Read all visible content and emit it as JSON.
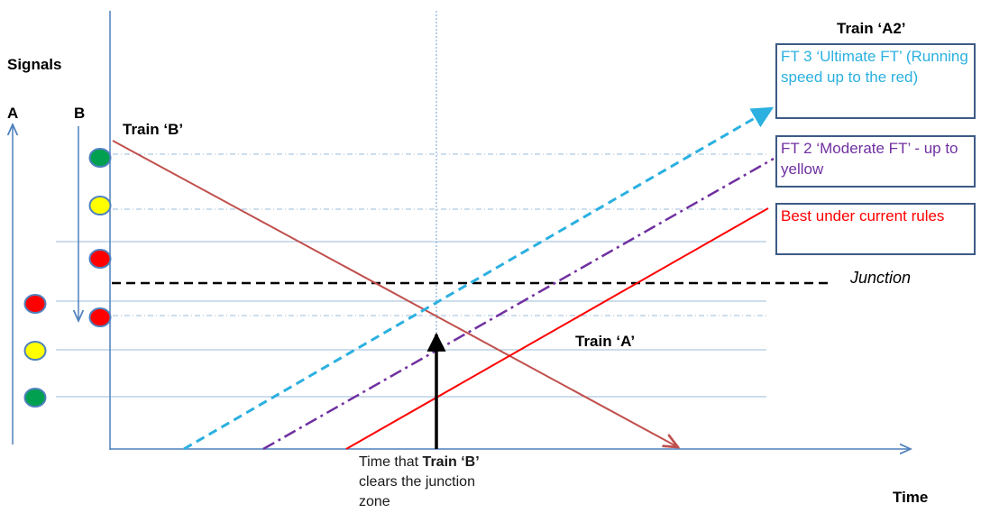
{
  "labels": {
    "signals": "Signals",
    "signal_a": "A",
    "signal_b": "B",
    "train_b": "Train ‘B’",
    "train_a": "Train ‘A’",
    "train_a2": "Train ‘A2’",
    "junction": "Junction",
    "time": "Time"
  },
  "boxes": {
    "ft3": "FT 3 ‘Ultimate FT’ (Running speed up to the red)",
    "ft2": "FT 2 ‘Moderate FT’ - up to yellow",
    "best": "Best under current rules"
  },
  "caption": {
    "line1_prefix": "Time that ",
    "line1_bold": "Train ‘B’",
    "line2": "clears the junction",
    "line3": "zone"
  },
  "signals_a": [
    "red",
    "yellow",
    "green"
  ],
  "signals_b": [
    "green",
    "yellow",
    "red",
    "red"
  ],
  "colors": {
    "axis": "#4f81bd",
    "train_b": "#c0504d",
    "ft3": "#2bb0e0",
    "ft2": "#7030a0",
    "best": "#ff0000",
    "box_border": "#3d5a85",
    "signal_red": "#ff0000",
    "signal_yellow": "#ffff00",
    "signal_green": "#00a050"
  }
}
